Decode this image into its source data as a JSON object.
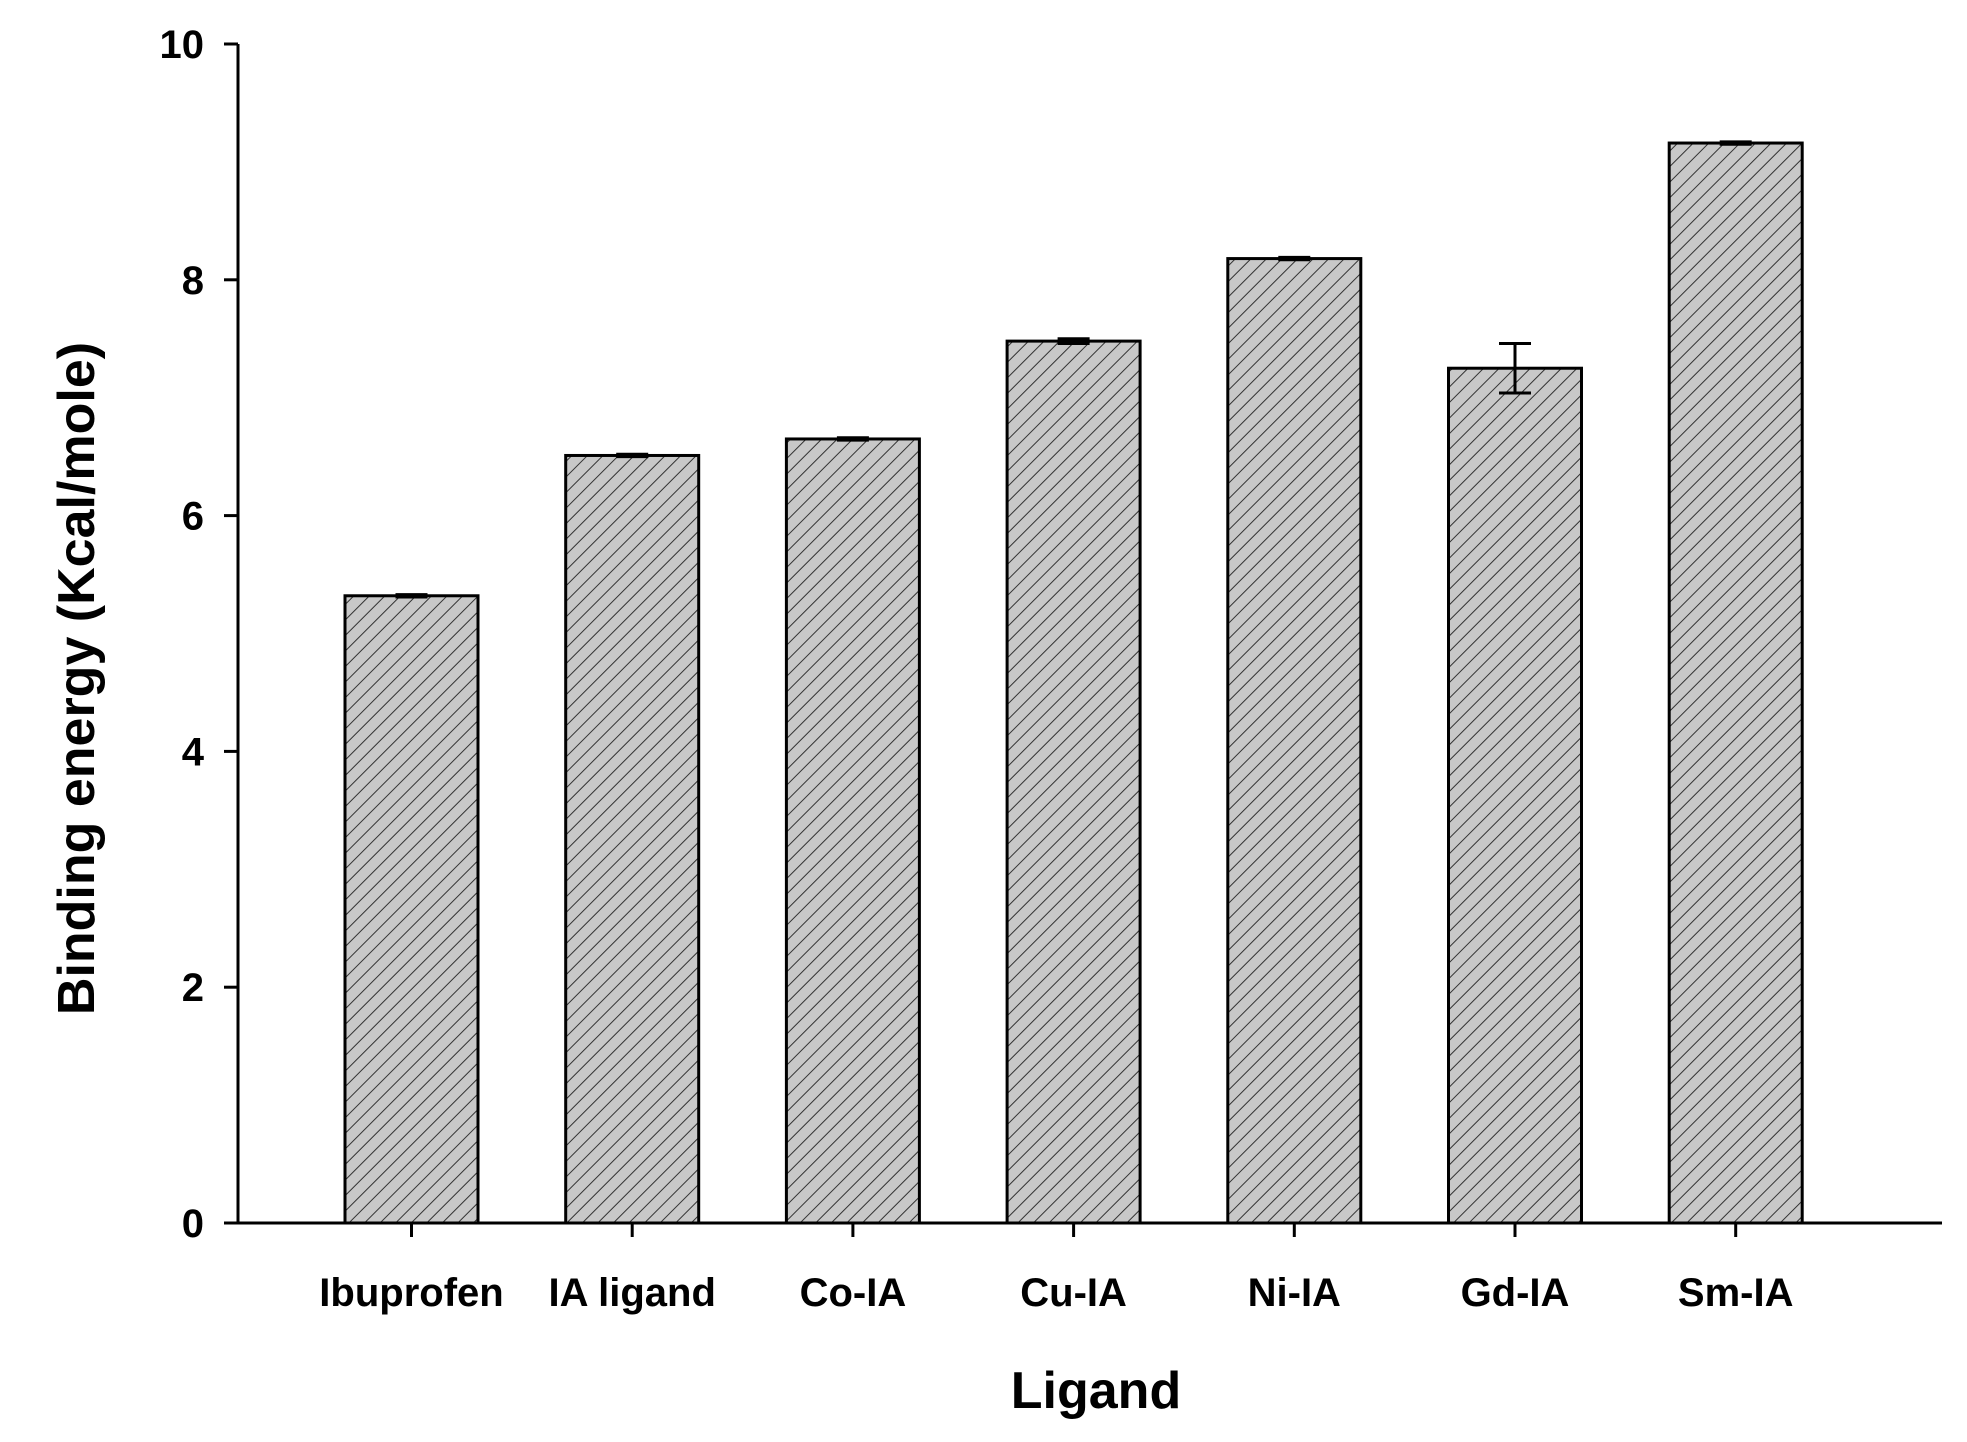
{
  "chart_data": {
    "type": "bar",
    "title": "",
    "xlabel": "Ligand",
    "ylabel": "Binding energy (Kcal/mole)",
    "categories": [
      "Ibuprofen",
      "IA ligand",
      "Co-IA",
      "Cu-IA",
      "Ni-IA",
      "Gd-IA",
      "Sm-IA"
    ],
    "values": [
      5.32,
      6.51,
      6.65,
      7.48,
      8.18,
      7.25,
      9.16
    ],
    "errors": [
      0.01,
      0.01,
      0.01,
      0.02,
      0.01,
      0.21,
      0.01
    ],
    "ylim": [
      0,
      10
    ],
    "yticks": [
      0,
      2,
      4,
      6,
      8,
      10
    ],
    "ytick_labels": [
      "0",
      "2",
      "4",
      "6",
      "8",
      "10"
    ],
    "grid": false,
    "legend": "none",
    "bar_fill": "#c8c8c8",
    "bar_hatch": "diagonal",
    "bar_edge": "#000000"
  }
}
